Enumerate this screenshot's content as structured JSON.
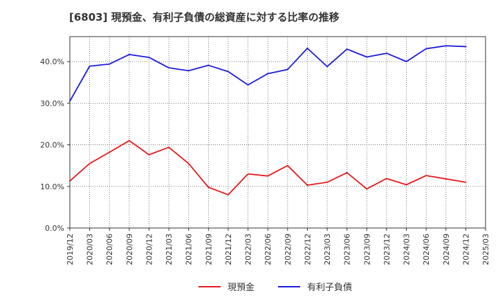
{
  "chart_data": {
    "type": "line",
    "title": "[6803]  現預金、有利子負債の総資産に対する比率の推移",
    "xlabel": "",
    "ylabel": "",
    "ylim": [
      0,
      46
    ],
    "yticks": [
      0,
      10,
      20,
      30,
      40
    ],
    "ytick_labels": [
      "0.0%",
      "10.0%",
      "20.0%",
      "30.0%",
      "40.0%"
    ],
    "categories": [
      "2019/12",
      "2020/03",
      "2020/06",
      "2020/09",
      "2020/12",
      "2021/03",
      "2021/06",
      "2021/09",
      "2021/12",
      "2022/03",
      "2022/06",
      "2022/09",
      "2022/12",
      "2023/03",
      "2023/06",
      "2023/09",
      "2023/12",
      "2024/03",
      "2024/06",
      "2024/09",
      "2024/12",
      "2025/03"
    ],
    "series": [
      {
        "name": "現預金",
        "color": "#e31a1c",
        "values": [
          11.3,
          15.5,
          18.2,
          21.0,
          17.6,
          19.4,
          15.5,
          9.8,
          8.0,
          13.0,
          12.5,
          15.0,
          10.3,
          11.0,
          13.3,
          9.4,
          11.9,
          10.4,
          12.6,
          11.8,
          11.0,
          null
        ]
      },
      {
        "name": "有利子負債",
        "color": "#1a1adb",
        "values": [
          30.5,
          38.9,
          39.4,
          41.7,
          41.0,
          38.5,
          37.8,
          39.1,
          37.6,
          34.4,
          37.1,
          38.1,
          43.2,
          38.8,
          43.0,
          41.1,
          42.0,
          40.0,
          43.1,
          43.8,
          43.6,
          null
        ]
      }
    ],
    "legend": "bottom-center",
    "grid": true
  }
}
